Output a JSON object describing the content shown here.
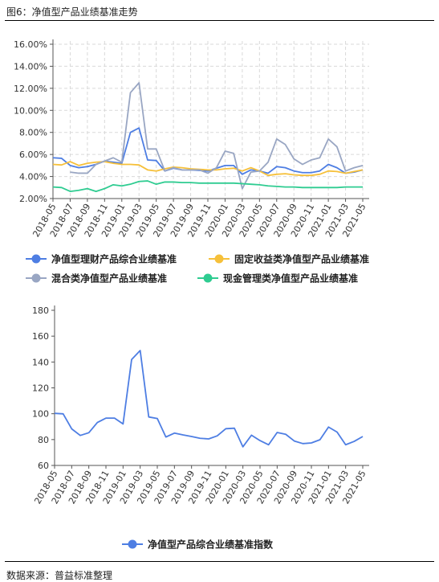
{
  "figure": {
    "title": "图6：净值型产品业绩基准走势",
    "source": "数据来源：普益标准整理"
  },
  "chart_data": [
    {
      "type": "line",
      "x": [
        "2018-05",
        "2018-06",
        "2018-07",
        "2018-08",
        "2018-09",
        "2018-10",
        "2018-11",
        "2018-12",
        "2019-01",
        "2019-02",
        "2019-03",
        "2019-04",
        "2019-05",
        "2019-06",
        "2019-07",
        "2019-08",
        "2019-09",
        "2019-10",
        "2019-11",
        "2019-12",
        "2020-01",
        "2020-02",
        "2020-03",
        "2020-04",
        "2020-05",
        "2020-06",
        "2020-07",
        "2020-08",
        "2020-09",
        "2020-10",
        "2020-11",
        "2020-12",
        "2021-01",
        "2021-02",
        "2021-03",
        "2021-04",
        "2021-05"
      ],
      "x_tick_labels": [
        "2018-05",
        "2018-07",
        "2018-09",
        "2018-11",
        "2019-01",
        "2019-03",
        "2019-05",
        "2019-07",
        "2019-09",
        "2019-11",
        "2020-01",
        "2020-03",
        "2020-05",
        "2020-07",
        "2020-09",
        "2020-11",
        "2021-01",
        "2021-03",
        "2021-05"
      ],
      "ylim": [
        2,
        16
      ],
      "y_ticks": [
        "2.00%",
        "4.00%",
        "6.00%",
        "8.00%",
        "10.00%",
        "12.00%",
        "14.00%",
        "16.00%"
      ],
      "grid": true,
      "legend_position": "bottom",
      "series": [
        {
          "name": "净值型理财产品综合业绩基准",
          "color": "#4e7ee3",
          "values": [
            5.7,
            5.65,
            5.0,
            4.8,
            4.9,
            5.1,
            5.4,
            5.3,
            5.2,
            8.0,
            8.4,
            5.5,
            5.45,
            4.5,
            4.75,
            4.6,
            4.6,
            4.55,
            4.5,
            4.75,
            5.0,
            5.0,
            4.2,
            4.6,
            4.5,
            4.3,
            4.9,
            4.8,
            4.5,
            4.35,
            4.35,
            4.5,
            5.1,
            4.8,
            4.3,
            4.4,
            4.6
          ]
        },
        {
          "name": "固定收益类净值型产品业绩基准",
          "color": "#f6c03a",
          "values": [
            5.1,
            5.05,
            5.35,
            5.0,
            5.2,
            5.3,
            5.35,
            5.2,
            5.1,
            5.1,
            5.05,
            4.6,
            4.5,
            4.7,
            4.85,
            4.8,
            4.7,
            4.65,
            4.6,
            4.6,
            4.7,
            4.75,
            4.5,
            4.8,
            4.5,
            4.1,
            4.2,
            4.25,
            4.15,
            4.1,
            4.1,
            4.2,
            4.5,
            4.45,
            4.3,
            4.45,
            4.6
          ]
        },
        {
          "name": "混合类净值型产品业绩基准",
          "color": "#99a6c3",
          "values": [
            null,
            null,
            4.4,
            4.3,
            4.3,
            5.1,
            5.4,
            5.7,
            5.3,
            11.6,
            12.5,
            6.5,
            6.5,
            4.5,
            4.8,
            4.6,
            4.6,
            4.6,
            4.3,
            4.8,
            6.3,
            6.1,
            2.9,
            4.4,
            4.5,
            5.3,
            7.4,
            6.9,
            5.6,
            5.1,
            5.5,
            5.7,
            7.4,
            6.7,
            4.5,
            4.8,
            5.0
          ]
        },
        {
          "name": "现金管理类净值型产品业绩基准",
          "color": "#2fcc91",
          "values": [
            3.05,
            3.0,
            2.65,
            2.75,
            2.9,
            2.65,
            2.9,
            3.25,
            3.15,
            3.3,
            3.55,
            3.6,
            3.3,
            3.5,
            3.5,
            3.45,
            3.45,
            3.4,
            3.4,
            3.4,
            3.4,
            3.4,
            3.35,
            3.3,
            3.25,
            3.15,
            3.1,
            3.05,
            3.05,
            3.0,
            3.0,
            3.0,
            3.0,
            3.0,
            3.05,
            3.05,
            3.05
          ]
        }
      ]
    },
    {
      "type": "line",
      "x": [
        "2018-05",
        "2018-06",
        "2018-07",
        "2018-08",
        "2018-09",
        "2018-10",
        "2018-11",
        "2018-12",
        "2019-01",
        "2019-02",
        "2019-03",
        "2019-04",
        "2019-05",
        "2019-06",
        "2019-07",
        "2019-08",
        "2019-09",
        "2019-10",
        "2019-11",
        "2019-12",
        "2020-01",
        "2020-02",
        "2020-03",
        "2020-04",
        "2020-05",
        "2020-06",
        "2020-07",
        "2020-08",
        "2020-09",
        "2020-10",
        "2020-11",
        "2020-12",
        "2021-01",
        "2021-02",
        "2021-03",
        "2021-04",
        "2021-05"
      ],
      "x_tick_labels": [
        "2018-05",
        "2018-07",
        "2018-09",
        "2018-11",
        "2019-01",
        "2019-03",
        "2019-05",
        "2019-07",
        "2019-09",
        "2019-11",
        "2020-01",
        "2020-03",
        "2020-05",
        "2020-07",
        "2020-09",
        "2020-11",
        "2021-01",
        "2021-03",
        "2021-05"
      ],
      "ylim": [
        60,
        180
      ],
      "y_ticks": [
        "60",
        "80",
        "100",
        "120",
        "140",
        "160",
        "180"
      ],
      "grid": false,
      "legend_position": "bottom",
      "series": [
        {
          "name": "净值型产品综合业绩基准指数",
          "color": "#4e7ee3",
          "values": [
            100.3,
            99.9,
            88.3,
            83.2,
            85.3,
            93.2,
            96.6,
            96.6,
            92.1,
            141.9,
            148.9,
            97.5,
            96.3,
            82.0,
            85.0,
            83.6,
            82.4,
            81.0,
            80.5,
            82.9,
            88.4,
            88.8,
            74.4,
            83.4,
            79.2,
            76.0,
            85.5,
            84.1,
            78.9,
            76.9,
            77.4,
            79.9,
            89.7,
            85.8,
            76.0,
            78.6,
            82.4
          ]
        }
      ]
    }
  ]
}
